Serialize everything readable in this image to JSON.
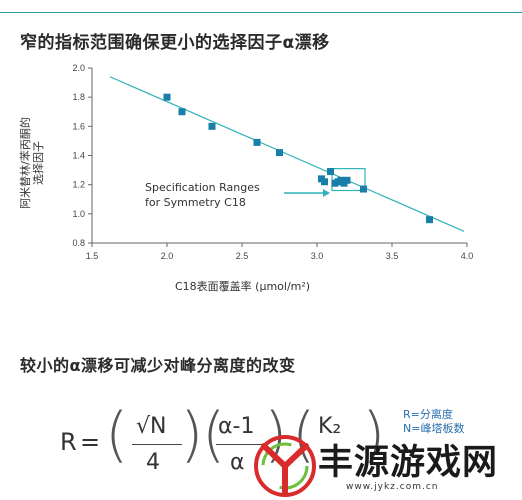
{
  "heading_top": "窄的指标范围确保更小的选择因子α漂移",
  "heading_bottom": "较小的α漂移可减少对峰分离度的改变",
  "chart_data": {
    "type": "scatter",
    "ylabel": "阿米替林/苯丙酮的\n选择因子",
    "xlabel": "C18表面覆盖率 (μmol/m²)",
    "xlim": [
      1.5,
      4.0
    ],
    "ylim": [
      0.8,
      2.0
    ],
    "x_ticks": [
      "1.5",
      "2.0",
      "2.5",
      "3.0",
      "3.5",
      "4.0"
    ],
    "y_ticks": [
      "0.8",
      "1.0",
      "1.2",
      "1.4",
      "1.6",
      "1.8",
      "2.0"
    ],
    "points": [
      {
        "x": 2.0,
        "y": 1.8
      },
      {
        "x": 2.1,
        "y": 1.7
      },
      {
        "x": 2.3,
        "y": 1.6
      },
      {
        "x": 2.6,
        "y": 1.49
      },
      {
        "x": 2.75,
        "y": 1.42
      },
      {
        "x": 3.03,
        "y": 1.24
      },
      {
        "x": 3.05,
        "y": 1.22
      },
      {
        "x": 3.09,
        "y": 1.29
      },
      {
        "x": 3.12,
        "y": 1.21
      },
      {
        "x": 3.14,
        "y": 1.22
      },
      {
        "x": 3.16,
        "y": 1.23
      },
      {
        "x": 3.18,
        "y": 1.21
      },
      {
        "x": 3.2,
        "y": 1.23
      },
      {
        "x": 3.31,
        "y": 1.17
      },
      {
        "x": 3.75,
        "y": 0.96
      }
    ],
    "trendline": {
      "x": [
        1.62,
        3.98
      ],
      "y": [
        1.94,
        0.88
      ]
    },
    "spec_range": {
      "x": [
        3.1,
        3.32
      ],
      "y": [
        1.16,
        1.31
      ]
    },
    "annotation": "Specification Ranges\nfor Symmetry C18",
    "grid": false,
    "colors": {
      "points": "#1a7fa8",
      "line": "#2fb3b6",
      "box": "#2fb3b6"
    }
  },
  "formula": {
    "R": "R",
    "eq": "=",
    "sqrtN": "√N",
    "four": "4",
    "alpha_minus_1": "α-1",
    "alpha": "α",
    "K2": "K₂"
  },
  "legend": {
    "line1": "R=分离度",
    "line2": "N=峰塔板数"
  },
  "watermark": {
    "text": "丰源游戏网",
    "url": "www.jykz.com.cn"
  }
}
